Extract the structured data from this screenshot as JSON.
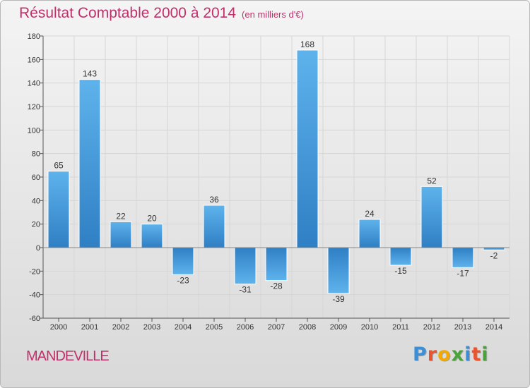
{
  "header": {
    "title": "Résultat Comptable 2000 à 2014",
    "subtitle": "(en milliers d'€)"
  },
  "footer": {
    "town": "MANDEVILLE",
    "brand_letters": [
      "P",
      "r",
      "o",
      "x",
      "i",
      "t",
      "i"
    ],
    "brand_colors": [
      "#3a8fd8",
      "#e8542f",
      "#f2a900",
      "#4aa33a",
      "#3a8fd8",
      "#e8542f",
      "#4aa33a"
    ]
  },
  "colors": {
    "title": "#c0306a",
    "bar_dark": "#2f7fc4",
    "bar_light": "#5eb3ec",
    "grid": "#d6d6d6"
  },
  "chart_data": {
    "type": "bar",
    "title": "Résultat Comptable 2000 à 2014",
    "subtitle": "(en milliers d'€)",
    "categories": [
      "2000",
      "2001",
      "2002",
      "2003",
      "2004",
      "2005",
      "2006",
      "2007",
      "2008",
      "2009",
      "2010",
      "2011",
      "2012",
      "2013",
      "2014"
    ],
    "values": [
      65,
      143,
      22,
      20,
      -23,
      36,
      -31,
      -28,
      168,
      -39,
      24,
      -15,
      52,
      -17,
      -2
    ],
    "ylim": [
      -60,
      180
    ],
    "yticks": [
      -60,
      -40,
      -20,
      0,
      20,
      40,
      60,
      80,
      100,
      120,
      140,
      160,
      180
    ],
    "grid": true,
    "data_labels": true
  }
}
